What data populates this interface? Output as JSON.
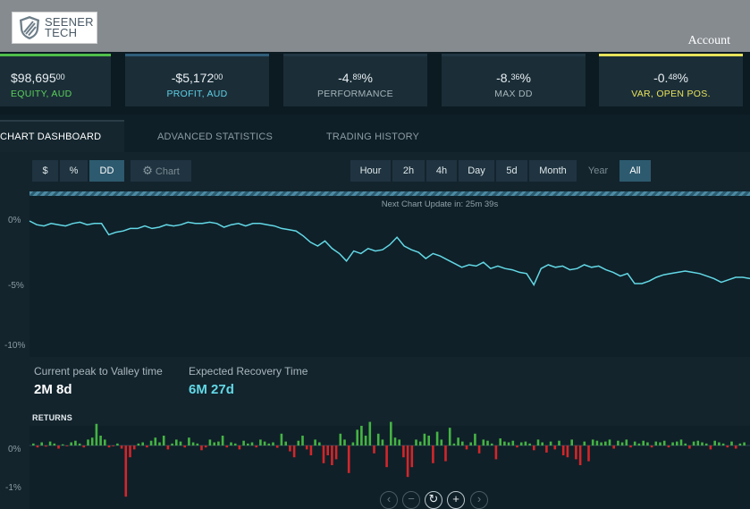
{
  "header": {
    "logo_line1": "SEENER",
    "logo_line2": "TECH",
    "account_label": "Account"
  },
  "stats": [
    {
      "value_main": "$98,695",
      "value_decimals": "00",
      "value_suffix": "",
      "label": "EQUITY, AUD",
      "label_color": "#5bd05a"
    },
    {
      "value_main": "-$5,172",
      "value_decimals": "00",
      "value_suffix": "",
      "label": "PROFIT, AUD",
      "label_color": "#5fd0e6"
    },
    {
      "value_main": "-4",
      "value_decimals": "89",
      "value_suffix": "%",
      "label": "PERFORMANCE",
      "label_color": "#a6b3b9"
    },
    {
      "value_main": "-8",
      "value_decimals": "36",
      "value_suffix": "%",
      "label": "MAX DD",
      "label_color": "#a6b3b9"
    },
    {
      "value_main": "-0",
      "value_decimals": "48",
      "value_suffix": "%",
      "label": "VAR, OPEN POS.",
      "label_color": "#e8e25a"
    }
  ],
  "tabs": [
    {
      "label": "CHART DASHBOARD",
      "active": true
    },
    {
      "label": "ADVANCED STATISTICS",
      "active": false
    },
    {
      "label": "TRADING HISTORY",
      "active": false
    }
  ],
  "view_buttons": [
    {
      "label": "$",
      "active": false
    },
    {
      "label": "%",
      "active": false
    },
    {
      "label": "DD",
      "active": true
    }
  ],
  "chart_button_label": "Chart",
  "range_buttons": [
    {
      "label": "Hour",
      "state": "normal"
    },
    {
      "label": "2h",
      "state": "normal"
    },
    {
      "label": "4h",
      "state": "normal"
    },
    {
      "label": "Day",
      "state": "normal"
    },
    {
      "label": "5d",
      "state": "normal"
    },
    {
      "label": "Month",
      "state": "normal"
    },
    {
      "label": "Year",
      "state": "muted"
    },
    {
      "label": "All",
      "state": "active"
    }
  ],
  "next_update": "Next Chart Update in: 25m 39s",
  "metrics": {
    "peak_to_valley_label": "Current peak to Valley time",
    "peak_to_valley_value": "2M 8d",
    "recovery_label": "Expected Recovery Time",
    "recovery_value": "6M 27d"
  },
  "returns_label": "RETURNS",
  "colors": {
    "line": "#63d8e6",
    "positive": "#45b344",
    "negative": "#d3262b"
  },
  "chart_data": [
    {
      "type": "line",
      "title": "",
      "xlabel": "",
      "ylabel": "",
      "ylim": [
        -11,
        0.5
      ],
      "yticks": [
        "0%",
        "-5%",
        "-10%"
      ],
      "y": [
        0,
        -0.3,
        -0.4,
        -0.2,
        -0.3,
        -0.4,
        -0.2,
        -0.1,
        -0.3,
        -0.2,
        -0.2,
        -1.1,
        -0.9,
        -0.8,
        -0.6,
        -0.6,
        -0.4,
        -0.6,
        -0.5,
        -0.3,
        -0.4,
        -0.3,
        -0.1,
        -0.2,
        -0.2,
        -0.1,
        -0.2,
        -0.5,
        -0.3,
        -0.2,
        -0.4,
        -0.2,
        -0.2,
        -0.3,
        -0.4,
        -0.6,
        -0.7,
        -0.8,
        -1.2,
        -1.7,
        -2.0,
        -1.6,
        -2.2,
        -2.6,
        -3.2,
        -2.4,
        -2.6,
        -2.2,
        -2.4,
        -2.3,
        -1.9,
        -1.3,
        -2.0,
        -2.3,
        -2.5,
        -3.0,
        -2.6,
        -2.8,
        -3.1,
        -3.4,
        -3.7,
        -3.5,
        -3.6,
        -3.3,
        -3.8,
        -3.6,
        -3.8,
        -3.9,
        -4.1,
        -4.2,
        -5.1,
        -3.8,
        -3.5,
        -3.7,
        -3.6,
        -3.9,
        -3.8,
        -3.5,
        -3.7,
        -3.6,
        -3.9,
        -4.1,
        -4.4,
        -4.2,
        -5.0,
        -5.0,
        -4.8,
        -4.5,
        -4.3,
        -4.2,
        -4.1,
        -4.0,
        -4.1,
        -4.2,
        -4.4,
        -4.6,
        -4.9,
        -4.7,
        -4.5,
        -4.5,
        -4.6
      ]
    },
    {
      "type": "bar",
      "title": "Returns",
      "xlabel": "",
      "ylabel": "",
      "ylim": [
        -1.3,
        0.8
      ],
      "yticks": [
        "0%",
        "-1%"
      ],
      "values": [
        0.05,
        -0.05,
        0.08,
        -0.03,
        0.1,
        0.05,
        -0.08,
        0.03,
        -0.02,
        0.08,
        0.12,
        0.05,
        -0.05,
        0.15,
        0.2,
        0.55,
        0.25,
        0.15,
        -0.05,
        -0.02,
        0.05,
        -0.08,
        -1.3,
        -0.3,
        -0.1,
        0.05,
        0.08,
        -0.05,
        0.12,
        0.2,
        0.08,
        0.25,
        -0.1,
        0.05,
        0.15,
        0.1,
        -0.05,
        0.2,
        0.08,
        0.05,
        -0.12,
        -0.05,
        0.15,
        0.08,
        0.1,
        0.25,
        -0.05,
        0.08,
        0.05,
        -0.1,
        0.12,
        0.05,
        0.08,
        -0.05,
        0.15,
        0.1,
        0.05,
        0.08,
        -0.06,
        0.3,
        0.1,
        -0.15,
        -0.3,
        0.12,
        0.25,
        -0.1,
        -0.25,
        0.15,
        0.08,
        -0.45,
        -0.25,
        -0.5,
        -0.35,
        0.3,
        0.15,
        -0.7,
        0.08,
        0.4,
        0.5,
        0.25,
        0.6,
        -0.2,
        0.3,
        0.15,
        -0.55,
        0.6,
        0.2,
        0.15,
        -0.3,
        -0.8,
        -0.55,
        0.15,
        0.1,
        0.3,
        0.25,
        -0.45,
        0.35,
        0.15,
        -0.4,
        0.45,
        0.05,
        0.2,
        0.1,
        -0.1,
        0.08,
        0.3,
        -0.2,
        0.15,
        0.12,
        0.05,
        -0.35,
        0.18,
        0.1,
        0.08,
        0.12,
        -0.05,
        0.08,
        0.1,
        0.05,
        -0.12,
        0.15,
        0.08,
        -0.18,
        0.1,
        -0.1,
        0.12,
        -0.25,
        -0.3,
        0.15,
        -0.35,
        -0.5,
        0.1,
        -0.4,
        0.15,
        0.12,
        0.08,
        0.1,
        0.15,
        -0.08,
        0.12,
        0.08,
        0.15,
        -0.05,
        0.1,
        0.05,
        0.12,
        0.08,
        -0.05,
        0.1,
        0.08,
        0.12,
        -0.05,
        0.08,
        0.1,
        0.15,
        0.05,
        -0.08,
        0.1,
        0.12,
        0.08,
        0.05,
        -0.1,
        0.12,
        0.08,
        0.05,
        -0.05,
        0.1,
        -0.08,
        0.05,
        0.08
      ]
    }
  ]
}
